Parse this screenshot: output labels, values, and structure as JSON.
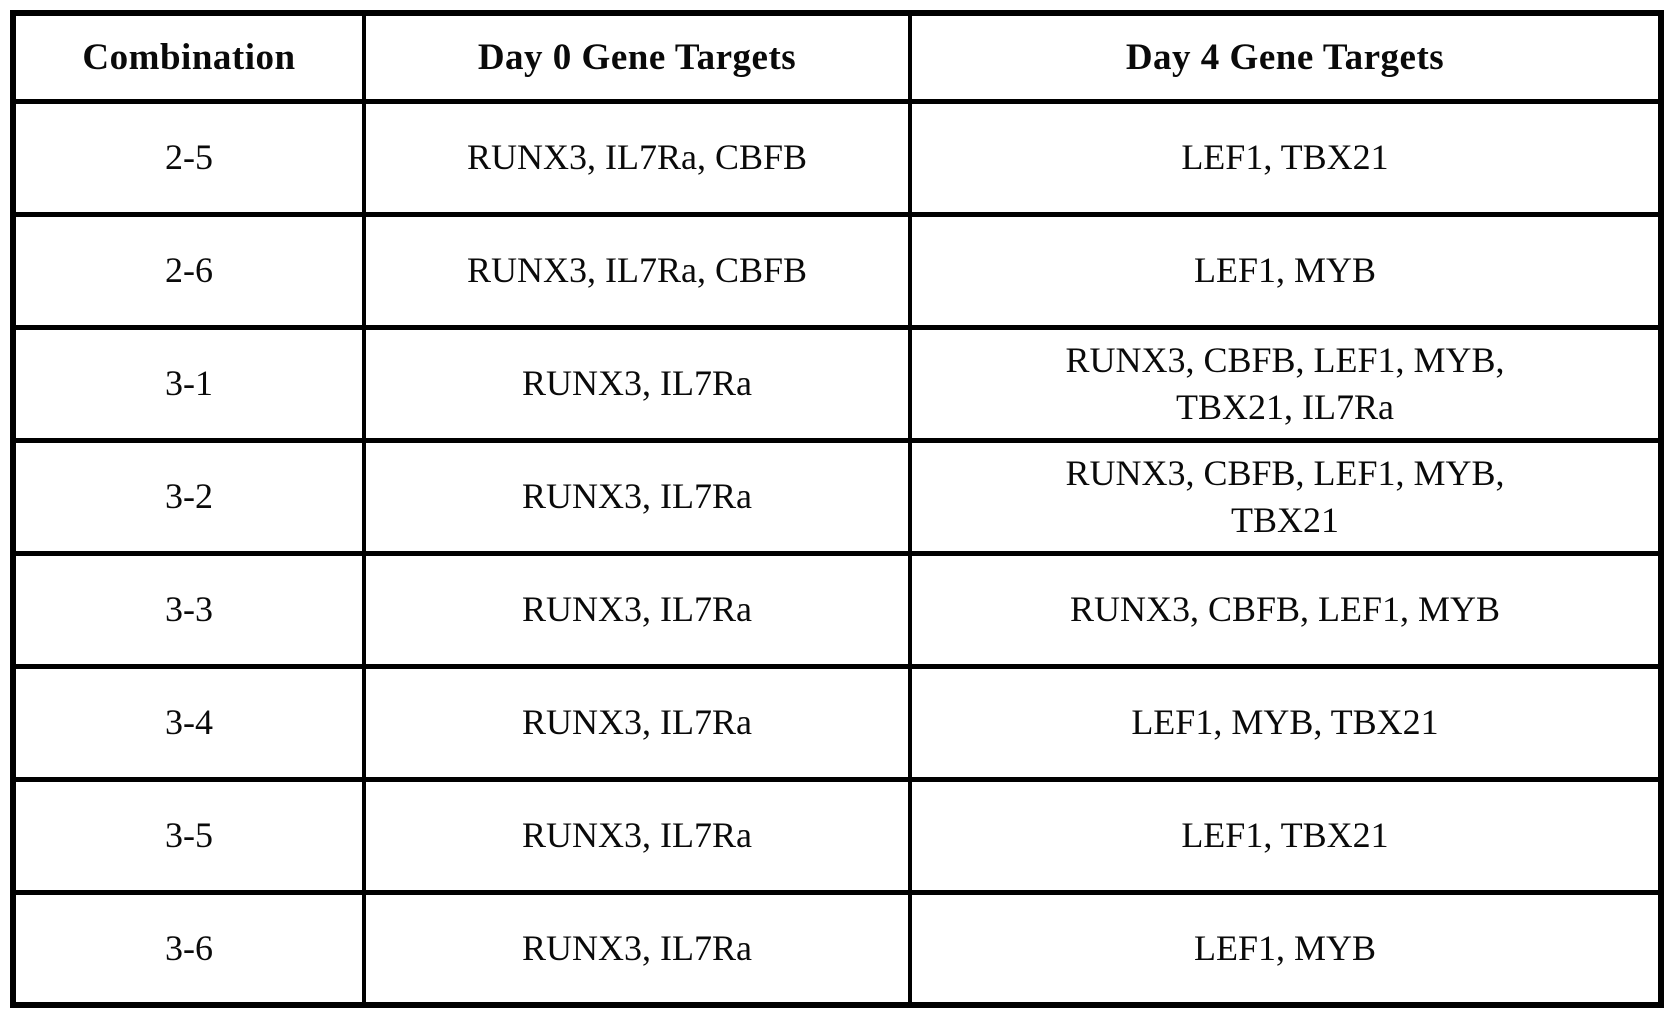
{
  "table": {
    "headers": [
      {
        "label": "Combination"
      },
      {
        "label": "Day 0 Gene Targets"
      },
      {
        "label": "Day 4 Gene Targets"
      }
    ],
    "rows": [
      {
        "combination": "2-5",
        "day0": "RUNX3, IL7Ra, CBFB",
        "day4": "LEF1, TBX21"
      },
      {
        "combination": "2-6",
        "day0": "RUNX3, IL7Ra, CBFB",
        "day4": "LEF1, MYB"
      },
      {
        "combination": "3-1",
        "day0": "RUNX3, IL7Ra",
        "day4": "RUNX3, CBFB, LEF1, MYB,\nTBX21, IL7Ra"
      },
      {
        "combination": "3-2",
        "day0": "RUNX3, IL7Ra",
        "day4": "RUNX3, CBFB, LEF1, MYB,\nTBX21"
      },
      {
        "combination": "3-3",
        "day0": "RUNX3, IL7Ra",
        "day4": "RUNX3, CBFB, LEF1, MYB"
      },
      {
        "combination": "3-4",
        "day0": "RUNX3, IL7Ra",
        "day4": "LEF1, MYB, TBX21"
      },
      {
        "combination": "3-5",
        "day0": "RUNX3, IL7Ra",
        "day4": "LEF1, TBX21"
      },
      {
        "combination": "3-6",
        "day0": "RUNX3, IL7Ra",
        "day4": "LEF1, MYB"
      }
    ]
  }
}
